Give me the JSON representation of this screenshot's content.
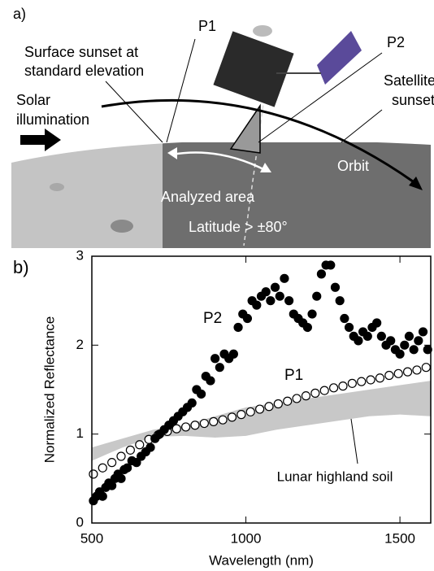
{
  "diagram": {
    "label": "a)",
    "p1": "P1",
    "p2": "P2",
    "surface_sunset": [
      "Surface sunset at",
      "standard elevation"
    ],
    "satellite_sunset": [
      "Satellite",
      "sunset"
    ],
    "solar": [
      "Solar",
      "illumination"
    ],
    "orbit": "Orbit",
    "analyzed_area": "Analyzed area",
    "latitude": "Latitude > ±80°"
  },
  "chart_data": {
    "type": "scatter",
    "panel_label": "b)",
    "x_label": "Wavelength (nm)",
    "y_label": "Normalized Reflectance",
    "xlim": [
      500,
      1600
    ],
    "ylim": [
      0,
      3
    ],
    "xticks": [
      500,
      1000,
      1500
    ],
    "yticks": [
      0,
      1,
      2,
      3
    ],
    "band": {
      "name": "Lunar highland soil",
      "color": "#c8c8c8",
      "x": [
        500,
        600,
        700,
        800,
        900,
        1000,
        1100,
        1200,
        1300,
        1400,
        1500,
        1600
      ],
      "upper": [
        0.85,
        0.95,
        1.05,
        1.1,
        1.2,
        1.3,
        1.35,
        1.4,
        1.45,
        1.5,
        1.55,
        1.6
      ],
      "lower": [
        0.7,
        0.85,
        0.97,
        0.98,
        0.96,
        0.98,
        1.05,
        1.1,
        1.15,
        1.2,
        1.22,
        1.2
      ]
    },
    "series": [
      {
        "name": "P2",
        "color": "#000000",
        "filled": true,
        "x": [
          505,
          515,
          525,
          535,
          545,
          555,
          565,
          575,
          585,
          595,
          605,
          615,
          630,
          645,
          660,
          675,
          690,
          705,
          720,
          735,
          750,
          765,
          780,
          795,
          810,
          825,
          840,
          855,
          870,
          885,
          900,
          915,
          930,
          945,
          960,
          975,
          990,
          1005,
          1020,
          1035,
          1050,
          1065,
          1080,
          1095,
          1110,
          1125,
          1140,
          1155,
          1170,
          1185,
          1200,
          1215,
          1230,
          1245,
          1260,
          1275,
          1290,
          1305,
          1320,
          1335,
          1350,
          1365,
          1380,
          1395,
          1410,
          1425,
          1440,
          1455,
          1470,
          1485,
          1500,
          1515,
          1530,
          1545,
          1560,
          1575,
          1590
        ],
        "values": [
          0.25,
          0.3,
          0.35,
          0.3,
          0.4,
          0.45,
          0.42,
          0.5,
          0.55,
          0.5,
          0.6,
          0.62,
          0.7,
          0.68,
          0.75,
          0.8,
          0.85,
          0.95,
          1.0,
          1.05,
          1.1,
          1.15,
          1.2,
          1.25,
          1.3,
          1.35,
          1.5,
          1.45,
          1.65,
          1.6,
          1.85,
          1.75,
          1.9,
          1.85,
          1.9,
          2.2,
          2.35,
          2.3,
          2.5,
          2.45,
          2.55,
          2.6,
          2.5,
          2.65,
          2.55,
          2.75,
          2.5,
          2.35,
          2.3,
          2.25,
          2.2,
          2.35,
          2.55,
          2.8,
          2.9,
          2.9,
          2.65,
          2.5,
          2.3,
          2.2,
          2.1,
          2.05,
          2.15,
          2.1,
          2.2,
          2.25,
          2.1,
          2.0,
          2.05,
          1.95,
          1.9,
          2.0,
          2.1,
          1.95,
          2.05,
          2.15,
          1.95
        ]
      },
      {
        "name": "P1",
        "color": "#000000",
        "filled": false,
        "x": [
          505,
          535,
          565,
          595,
          625,
          655,
          685,
          715,
          745,
          775,
          805,
          835,
          865,
          895,
          925,
          955,
          985,
          1015,
          1045,
          1075,
          1105,
          1135,
          1165,
          1195,
          1225,
          1255,
          1285,
          1315,
          1345,
          1375,
          1405,
          1435,
          1465,
          1495,
          1525,
          1555,
          1585
        ],
        "values": [
          0.55,
          0.62,
          0.68,
          0.75,
          0.82,
          0.88,
          0.94,
          0.99,
          1.03,
          1.06,
          1.08,
          1.1,
          1.12,
          1.14,
          1.16,
          1.19,
          1.22,
          1.25,
          1.28,
          1.31,
          1.34,
          1.37,
          1.4,
          1.43,
          1.46,
          1.49,
          1.52,
          1.54,
          1.57,
          1.59,
          1.61,
          1.63,
          1.66,
          1.68,
          1.7,
          1.72,
          1.75
        ]
      }
    ]
  }
}
